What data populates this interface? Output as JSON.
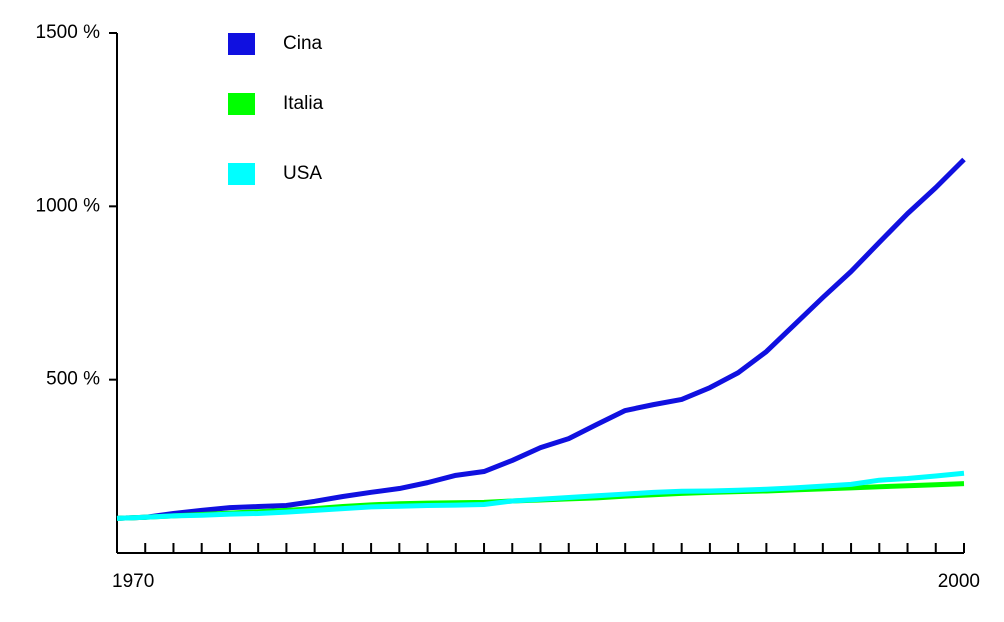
{
  "chart_data": {
    "type": "line",
    "x": [
      1970,
      1971,
      1972,
      1973,
      1974,
      1975,
      1976,
      1977,
      1978,
      1979,
      1980,
      1981,
      1982,
      1983,
      1984,
      1985,
      1986,
      1987,
      1988,
      1989,
      1990,
      1991,
      1992,
      1993,
      1994,
      1995,
      1996,
      1997,
      1998,
      1999,
      2000
    ],
    "series": [
      {
        "name": "Cina",
        "color": "#1010e0",
        "values": [
          100,
          103,
          114,
          123,
          131,
          134,
          137,
          149,
          163,
          175,
          186,
          203,
          224,
          235,
          267,
          304,
          330,
          371,
          411,
          428,
          443,
          477,
          520,
          581,
          659,
          737,
          812,
          896,
          979,
          1054,
          1135
        ]
      },
      {
        "name": "Italia",
        "color": "#00ff00",
        "values": [
          100,
          103,
          107,
          111,
          115,
          119,
          123,
          128,
          134,
          139,
          142,
          144,
          145,
          146,
          150,
          153,
          156,
          159,
          164,
          168,
          172,
          175,
          177,
          179,
          182,
          185,
          188,
          191,
          194,
          197,
          200
        ]
      },
      {
        "name": "USA",
        "color": "#00ffff",
        "values": [
          100,
          103,
          107,
          109,
          112,
          114,
          118,
          123,
          128,
          133,
          135,
          137,
          138,
          140,
          150,
          155,
          160,
          165,
          170,
          175,
          178,
          179,
          181,
          184,
          188,
          193,
          198,
          210,
          215,
          222,
          230
        ]
      }
    ],
    "xlim": [
      1970,
      2000
    ],
    "xticks": [
      1970,
      2000
    ],
    "minor_xticks": [
      1971,
      1972,
      1973,
      1974,
      1975,
      1976,
      1977,
      1978,
      1979,
      1980,
      1981,
      1982,
      1983,
      1984,
      1985,
      1986,
      1987,
      1988,
      1989,
      1990,
      1991,
      1992,
      1993,
      1994,
      1995,
      1996,
      1997,
      1998,
      1999
    ],
    "ylim": [
      0,
      1500
    ],
    "yticks": [
      {
        "value": 500,
        "label": "500 %"
      },
      {
        "value": 1000,
        "label": "1000 %"
      },
      {
        "value": 1500,
        "label": "1500 %"
      }
    ],
    "legend": "top-left"
  }
}
